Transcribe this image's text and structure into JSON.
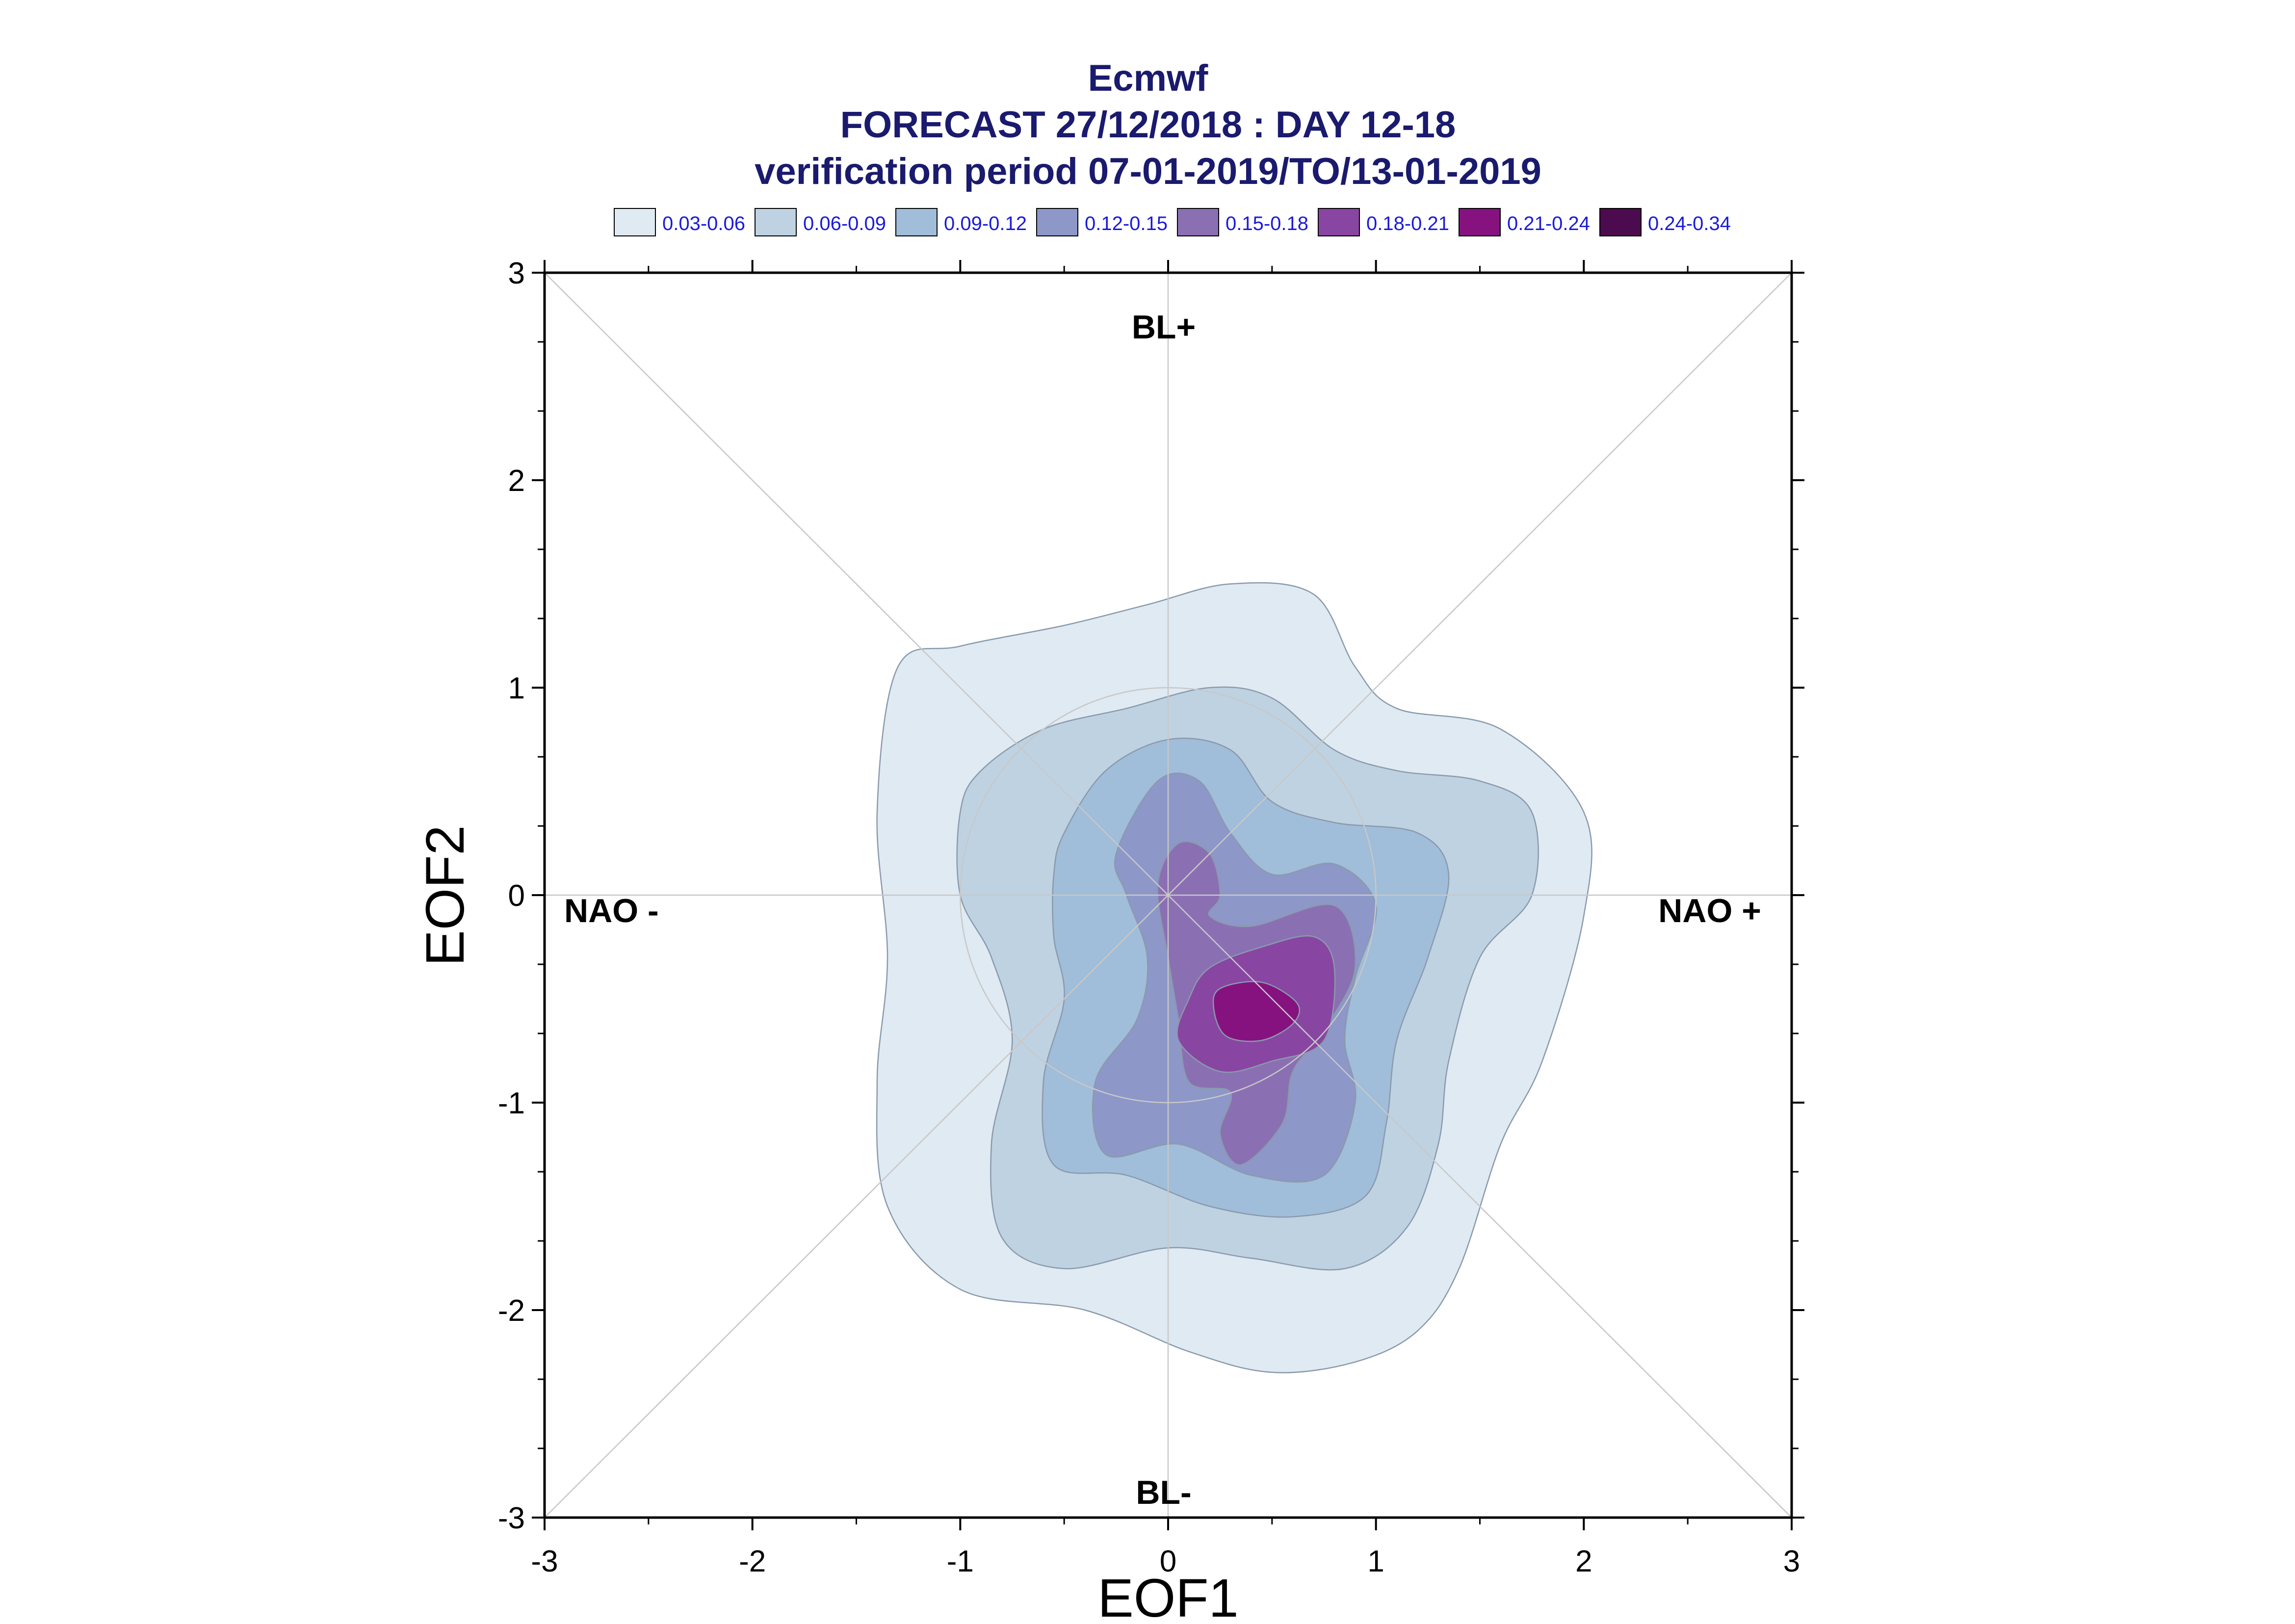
{
  "chart_data": {
    "type": "contour",
    "title": "Ecmwf",
    "subtitle_lines": [
      "FORECAST 27/12/2018 : DAY 12-18",
      "verification period 07-01-2019/TO/13-01-2019"
    ],
    "xlabel": "EOF1",
    "ylabel": "EOF2",
    "xlim": [
      -3,
      3
    ],
    "ylim": [
      -3,
      3
    ],
    "x_ticks": [
      "-3",
      "-2",
      "-1",
      "0",
      "1",
      "2",
      "3"
    ],
    "y_ticks": [
      "3",
      "2",
      "1",
      "0",
      "-1",
      "-2",
      "-3"
    ],
    "grid": "center cross, diagonals and unit circle",
    "legend_placement": "top",
    "regime_labels": {
      "top": "BL+",
      "bottom": "BL-",
      "left": "NAO -",
      "right": "NAO +"
    },
    "legend": [
      {
        "label": "0.03-0.06",
        "color": "#dfeaf2"
      },
      {
        "label": "0.06-0.09",
        "color": "#bfd2e2"
      },
      {
        "label": "0.09-0.12",
        "color": "#a0bdd9"
      },
      {
        "label": "0.12-0.15",
        "color": "#8d97c8"
      },
      {
        "label": "0.15-0.18",
        "color": "#8b6fb3"
      },
      {
        "label": "0.18-0.21",
        "color": "#8846a2"
      },
      {
        "label": "0.21-0.24",
        "color": "#85127f"
      },
      {
        "label": "0.24-0.34",
        "color": "#4c0b4e"
      }
    ],
    "density_levels": [
      {
        "range": "0.03-0.06",
        "color": "#dfeaf2",
        "contour": [
          [
            -1.3,
            1.1
          ],
          [
            -1.0,
            1.2
          ],
          [
            -0.5,
            1.3
          ],
          [
            -0.1,
            1.4
          ],
          [
            0.3,
            1.5
          ],
          [
            0.7,
            1.45
          ],
          [
            0.9,
            1.1
          ],
          [
            1.1,
            0.9
          ],
          [
            1.6,
            0.8
          ],
          [
            2.0,
            0.4
          ],
          [
            2.0,
            -0.1
          ],
          [
            1.8,
            -0.8
          ],
          [
            1.6,
            -1.2
          ],
          [
            1.4,
            -1.8
          ],
          [
            1.2,
            -2.1
          ],
          [
            0.9,
            -2.25
          ],
          [
            0.5,
            -2.3
          ],
          [
            0.1,
            -2.2
          ],
          [
            -0.4,
            -2.0
          ],
          [
            -1.0,
            -1.9
          ],
          [
            -1.35,
            -1.5
          ],
          [
            -1.4,
            -0.9
          ],
          [
            -1.35,
            -0.3
          ],
          [
            -1.4,
            0.4
          ]
        ]
      },
      {
        "range": "0.06-0.09",
        "color": "#bfd2e2",
        "contour": [
          [
            -0.9,
            0.6
          ],
          [
            -0.6,
            0.8
          ],
          [
            -0.2,
            0.9
          ],
          [
            0.2,
            1.0
          ],
          [
            0.5,
            0.95
          ],
          [
            0.8,
            0.7
          ],
          [
            1.1,
            0.6
          ],
          [
            1.5,
            0.55
          ],
          [
            1.75,
            0.4
          ],
          [
            1.75,
            0.0
          ],
          [
            1.5,
            -0.3
          ],
          [
            1.35,
            -0.8
          ],
          [
            1.3,
            -1.2
          ],
          [
            1.15,
            -1.6
          ],
          [
            0.85,
            -1.8
          ],
          [
            0.4,
            -1.75
          ],
          [
            0.0,
            -1.7
          ],
          [
            -0.5,
            -1.8
          ],
          [
            -0.8,
            -1.65
          ],
          [
            -0.85,
            -1.2
          ],
          [
            -0.75,
            -0.7
          ],
          [
            -0.85,
            -0.3
          ],
          [
            -1.0,
            0.0
          ],
          [
            -1.0,
            0.4
          ]
        ]
      },
      {
        "range": "0.09-0.12",
        "color": "#a0bdd9",
        "contour": [
          [
            -0.5,
            0.3
          ],
          [
            -0.3,
            0.6
          ],
          [
            0.0,
            0.75
          ],
          [
            0.3,
            0.7
          ],
          [
            0.5,
            0.45
          ],
          [
            0.8,
            0.35
          ],
          [
            1.2,
            0.3
          ],
          [
            1.35,
            0.1
          ],
          [
            1.25,
            -0.3
          ],
          [
            1.1,
            -0.7
          ],
          [
            1.05,
            -1.1
          ],
          [
            0.95,
            -1.45
          ],
          [
            0.6,
            -1.55
          ],
          [
            0.2,
            -1.5
          ],
          [
            -0.2,
            -1.35
          ],
          [
            -0.55,
            -1.3
          ],
          [
            -0.6,
            -0.9
          ],
          [
            -0.5,
            -0.5
          ],
          [
            -0.55,
            -0.2
          ],
          [
            -0.55,
            0.1
          ]
        ]
      },
      {
        "range": "0.12-0.15",
        "color": "#8d97c8",
        "contour": [
          [
            -0.25,
            0.2
          ],
          [
            -0.05,
            0.55
          ],
          [
            0.15,
            0.55
          ],
          [
            0.3,
            0.3
          ],
          [
            0.5,
            0.1
          ],
          [
            0.8,
            0.15
          ],
          [
            1.0,
            -0.05
          ],
          [
            0.9,
            -0.4
          ],
          [
            0.85,
            -0.7
          ],
          [
            0.9,
            -1.0
          ],
          [
            0.75,
            -1.35
          ],
          [
            0.4,
            -1.35
          ],
          [
            0.05,
            -1.2
          ],
          [
            -0.3,
            -1.25
          ],
          [
            -0.35,
            -0.9
          ],
          [
            -0.15,
            -0.6
          ],
          [
            -0.1,
            -0.3
          ],
          [
            -0.2,
            0.0
          ]
        ]
      },
      {
        "range": "0.15-0.18",
        "color": "#8b6fb3",
        "contour": [
          [
            -0.05,
            0.05
          ],
          [
            0.05,
            0.25
          ],
          [
            0.2,
            0.2
          ],
          [
            0.25,
            0.0
          ],
          [
            0.2,
            -0.1
          ],
          [
            0.4,
            -0.15
          ],
          [
            0.8,
            -0.05
          ],
          [
            0.9,
            -0.35
          ],
          [
            0.75,
            -0.65
          ],
          [
            0.6,
            -0.85
          ],
          [
            0.55,
            -1.1
          ],
          [
            0.35,
            -1.3
          ],
          [
            0.25,
            -1.15
          ],
          [
            0.3,
            -0.95
          ],
          [
            0.1,
            -0.9
          ],
          [
            0.05,
            -0.6
          ],
          [
            0.0,
            -0.3
          ]
        ]
      },
      {
        "range": "0.18-0.21",
        "color": "#8846a2",
        "contour": [
          [
            0.2,
            -0.35
          ],
          [
            0.45,
            -0.25
          ],
          [
            0.7,
            -0.2
          ],
          [
            0.8,
            -0.35
          ],
          [
            0.75,
            -0.7
          ],
          [
            0.5,
            -0.8
          ],
          [
            0.25,
            -0.85
          ],
          [
            0.05,
            -0.7
          ],
          [
            0.1,
            -0.5
          ]
        ]
      },
      {
        "range": "0.21-0.24",
        "color": "#85127f",
        "contour": [
          [
            0.25,
            -0.45
          ],
          [
            0.45,
            -0.42
          ],
          [
            0.62,
            -0.52
          ],
          [
            0.6,
            -0.62
          ],
          [
            0.45,
            -0.7
          ],
          [
            0.28,
            -0.68
          ],
          [
            0.22,
            -0.55
          ]
        ]
      }
    ]
  }
}
